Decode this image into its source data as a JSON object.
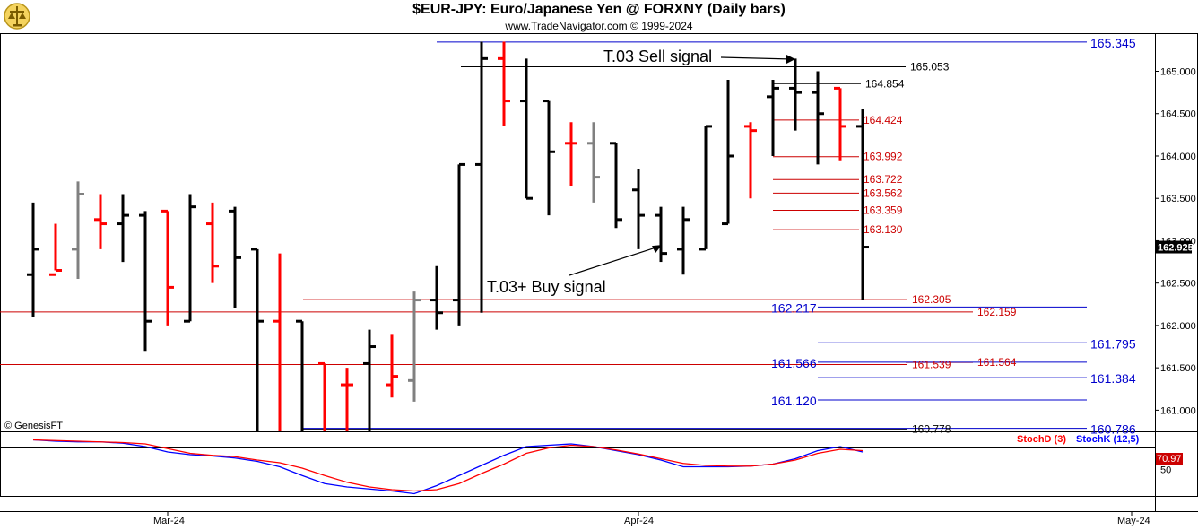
{
  "header": {
    "title": "$EUR-JPY:  Euro/Japanese Yen @ FORXNY  (Daily bars)",
    "subtitle": "www.TradeNavigator.com © 1999-2024"
  },
  "colors": {
    "up": "#000000",
    "down": "#ff0000",
    "neutral": "#808080",
    "blue": "#0000cc",
    "red": "#cc0000",
    "stochK": "#0000ff",
    "stochD": "#ff0000"
  },
  "chart_data": {
    "type": "bar",
    "title": "$EUR-JPY:  Euro/Japanese Yen @ FORXNY  (Daily bars)",
    "ohlc_bars": [
      {
        "o": 162.6,
        "h": 163.45,
        "l": 162.1,
        "c": 162.9,
        "color": "black"
      },
      {
        "o": 162.6,
        "h": 163.2,
        "l": 162.65,
        "c": 162.65,
        "color": "red"
      },
      {
        "o": 162.9,
        "h": 163.7,
        "l": 162.55,
        "c": 163.55,
        "color": "gray"
      },
      {
        "o": 163.25,
        "h": 163.55,
        "l": 162.9,
        "c": 163.2,
        "color": "red"
      },
      {
        "o": 163.2,
        "h": 163.55,
        "l": 162.75,
        "c": 163.3,
        "color": "black"
      },
      {
        "o": 163.3,
        "h": 163.35,
        "l": 161.7,
        "c": 162.05,
        "color": "black"
      },
      {
        "o": 163.35,
        "h": 163.35,
        "l": 162.0,
        "c": 162.45,
        "color": "red"
      },
      {
        "o": 162.05,
        "h": 163.55,
        "l": 162.05,
        "c": 163.4,
        "color": "black"
      },
      {
        "o": 163.2,
        "h": 163.45,
        "l": 162.5,
        "c": 162.7,
        "color": "red"
      },
      {
        "o": 163.35,
        "h": 163.4,
        "l": 162.2,
        "c": 162.8,
        "color": "black"
      },
      {
        "o": 162.9,
        "h": 162.9,
        "l": 160.7,
        "c": 162.05,
        "color": "black"
      },
      {
        "o": 162.05,
        "h": 162.85,
        "l": 160.7,
        "c": 160.7,
        "color": "red"
      },
      {
        "o": 162.05,
        "h": 162.05,
        "l": 160.7,
        "c": 160.7,
        "color": "black"
      },
      {
        "o": 161.55,
        "h": 161.55,
        "l": 160.7,
        "c": 160.7,
        "color": "red"
      },
      {
        "o": 161.3,
        "h": 161.5,
        "l": 160.7,
        "c": 161.3,
        "color": "red"
      },
      {
        "o": 161.55,
        "h": 161.95,
        "l": 160.7,
        "c": 161.75,
        "color": "black"
      },
      {
        "o": 161.3,
        "h": 161.9,
        "l": 161.15,
        "c": 161.4,
        "color": "red"
      },
      {
        "o": 161.35,
        "h": 162.4,
        "l": 161.1,
        "c": 162.3,
        "color": "gray"
      },
      {
        "o": 162.3,
        "h": 162.7,
        "l": 161.95,
        "c": 162.15,
        "color": "black"
      },
      {
        "o": 162.3,
        "h": 163.9,
        "l": 162.0,
        "c": 163.9,
        "color": "black"
      },
      {
        "o": 163.9,
        "h": 165.35,
        "l": 162.15,
        "c": 165.15,
        "color": "black"
      },
      {
        "o": 165.15,
        "h": 165.35,
        "l": 164.35,
        "c": 164.65,
        "color": "red"
      },
      {
        "o": 164.65,
        "h": 165.15,
        "l": 163.5,
        "c": 163.5,
        "color": "black"
      },
      {
        "o": 164.65,
        "h": 164.65,
        "l": 163.3,
        "c": 164.05,
        "color": "black"
      },
      {
        "o": 164.15,
        "h": 164.4,
        "l": 163.65,
        "c": 164.15,
        "color": "red"
      },
      {
        "o": 164.15,
        "h": 164.4,
        "l": 163.45,
        "c": 163.75,
        "color": "gray"
      },
      {
        "o": 164.15,
        "h": 164.15,
        "l": 163.15,
        "c": 163.25,
        "color": "black"
      },
      {
        "o": 163.6,
        "h": 163.85,
        "l": 162.9,
        "c": 163.3,
        "color": "black"
      },
      {
        "o": 163.3,
        "h": 163.4,
        "l": 162.75,
        "c": 162.85,
        "color": "black"
      },
      {
        "o": 162.9,
        "h": 163.4,
        "l": 162.6,
        "c": 163.25,
        "color": "black"
      },
      {
        "o": 162.9,
        "h": 164.35,
        "l": 162.9,
        "c": 164.35,
        "color": "black"
      },
      {
        "o": 163.2,
        "h": 164.9,
        "l": 163.2,
        "c": 164.0,
        "color": "black"
      },
      {
        "o": 164.35,
        "h": 164.4,
        "l": 163.5,
        "c": 164.3,
        "color": "red"
      },
      {
        "o": 164.7,
        "h": 164.9,
        "l": 164.0,
        "c": 164.8,
        "color": "black"
      },
      {
        "o": 164.8,
        "h": 165.15,
        "l": 164.3,
        "c": 164.75,
        "color": "black"
      },
      {
        "o": 164.75,
        "h": 165.0,
        "l": 163.9,
        "c": 164.5,
        "color": "black"
      },
      {
        "o": 164.8,
        "h": 164.8,
        "l": 163.95,
        "c": 164.35,
        "color": "red"
      },
      {
        "o": 164.35,
        "h": 164.55,
        "l": 162.3,
        "c": 162.925,
        "color": "black"
      }
    ],
    "price_axis": {
      "ylim": [
        160.75,
        165.45
      ],
      "ticks": [
        "165.000",
        "164.500",
        "164.000",
        "163.500",
        "163.000",
        "162.500",
        "162.000",
        "161.500",
        "161.000"
      ],
      "last_price": "162.925"
    },
    "levels_blue": [
      {
        "value": "165.345",
        "label_pos": "right"
      },
      {
        "value": "162.217",
        "label_pos": "left"
      },
      {
        "value": "161.795",
        "label_pos": "right"
      },
      {
        "value": "161.566",
        "label_pos": "left"
      },
      {
        "value": "161.384",
        "label_pos": "right"
      },
      {
        "value": "161.120",
        "label_pos": "left"
      },
      {
        "value": "160.786",
        "label_pos": "right"
      }
    ],
    "levels_red": [
      {
        "value": "164.424"
      },
      {
        "value": "163.992"
      },
      {
        "value": "163.722"
      },
      {
        "value": "163.562"
      },
      {
        "value": "163.359"
      },
      {
        "value": "163.130"
      },
      {
        "value": "162.305"
      },
      {
        "value": "162.159"
      },
      {
        "value": "161.564"
      },
      {
        "value": "161.539"
      }
    ],
    "levels_black": [
      {
        "value": "165.053"
      },
      {
        "value": "164.854"
      },
      {
        "value": "160.778"
      }
    ],
    "annotations": [
      {
        "text": "T.03 Sell signal",
        "target_bar": 34
      },
      {
        "text": "T.03+ Buy signal",
        "target_bar": 28
      }
    ],
    "x_labels": [
      {
        "label": "Mar-24",
        "bar": 6
      },
      {
        "label": "Apr-24",
        "bar": 27
      },
      {
        "label": "May-24",
        "bar": 49
      }
    ],
    "stochastic": {
      "ylim": [
        0,
        100
      ],
      "tick": "50",
      "last_value": "70.97",
      "legend_d": "StochD (3)",
      "legend_k": "StochK (12,5)",
      "k": [
        98,
        96,
        95,
        95,
        93,
        88,
        80,
        76,
        74,
        71,
        66,
        58,
        45,
        33,
        28,
        25,
        22,
        18,
        30,
        45,
        60,
        75,
        88,
        90,
        92,
        88,
        82,
        76,
        68,
        58,
        58,
        58,
        59,
        62,
        70,
        82,
        88,
        80
      ],
      "d": [
        98,
        97,
        96,
        95,
        94,
        92,
        85,
        78,
        75,
        73,
        68,
        64,
        56,
        45,
        35,
        28,
        24,
        22,
        24,
        33,
        48,
        62,
        78,
        86,
        90,
        88,
        83,
        77,
        70,
        63,
        60,
        59,
        59,
        62,
        68,
        78,
        84,
        82
      ]
    },
    "watermark": "© GenesisFT"
  }
}
